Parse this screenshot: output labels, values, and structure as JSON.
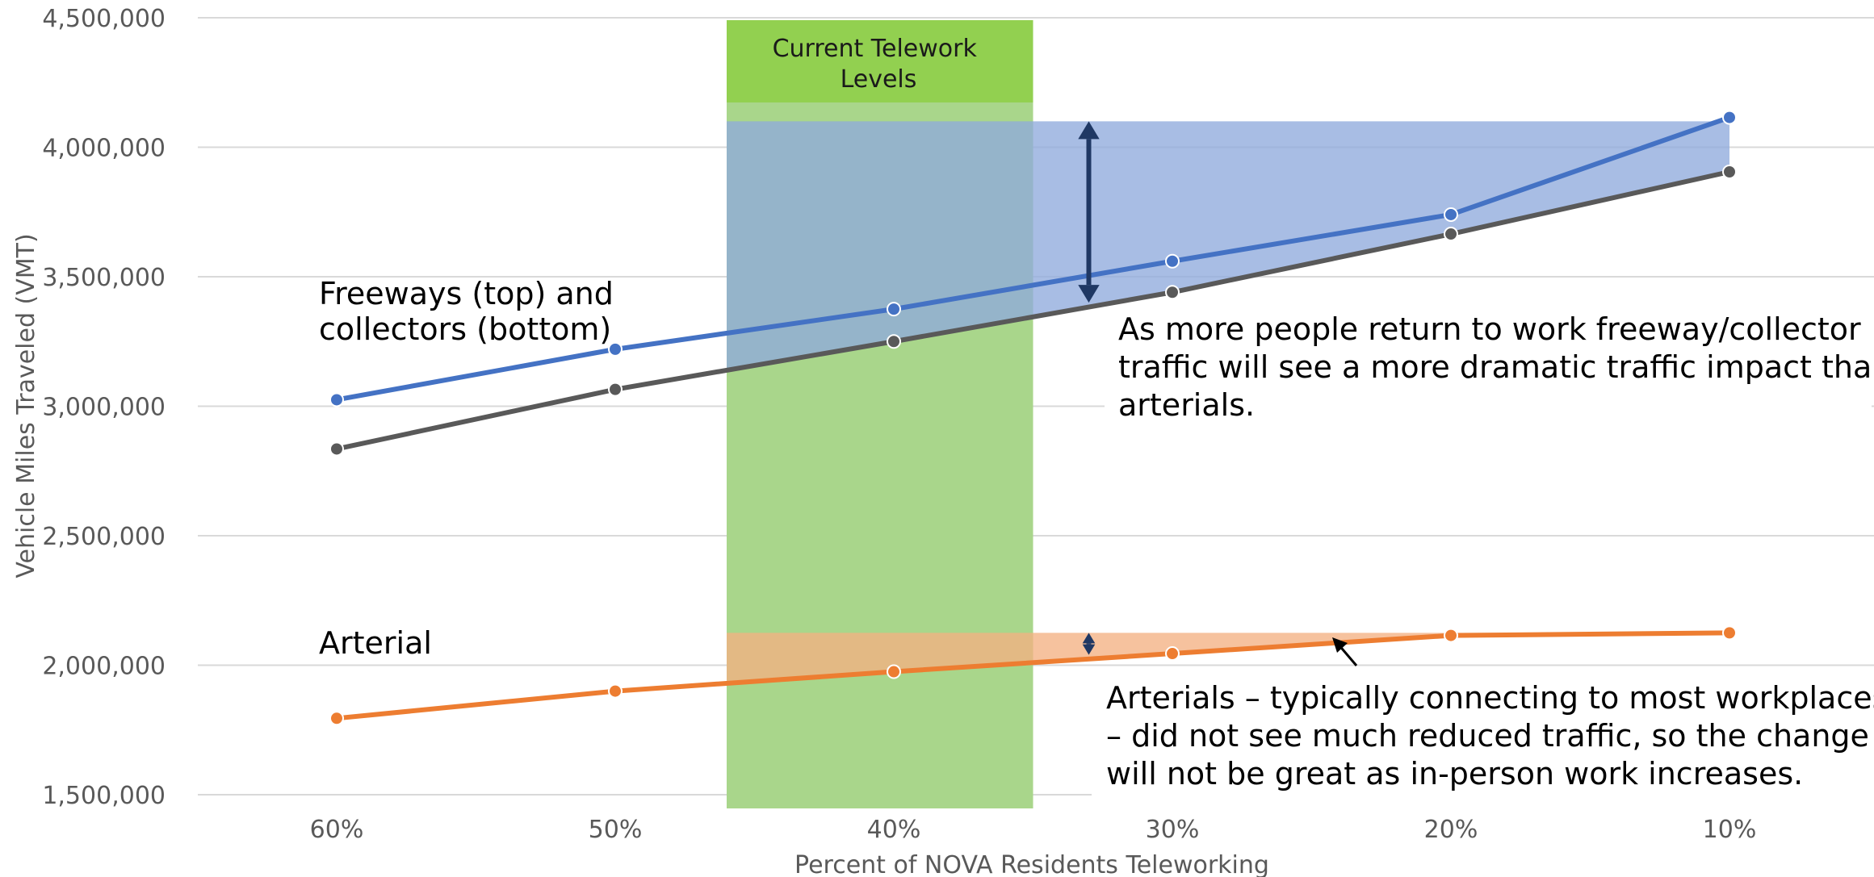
{
  "chart_data": {
    "type": "line",
    "title": "",
    "xlabel": "Percent of NOVA Residents Teleworking",
    "ylabel": "Vehicle Miles Traveled (VMT)",
    "categories": [
      "60%",
      "50%",
      "40%",
      "30%",
      "20%",
      "10%"
    ],
    "ylim": [
      1500000,
      4500000
    ],
    "yticks": [
      1500000,
      2000000,
      2500000,
      3000000,
      3500000,
      4000000,
      4500000
    ],
    "ytick_labels": [
      "1,500,000",
      "2,000,000",
      "2,500,000",
      "3,000,000",
      "3,500,000",
      "4,000,000",
      "4,500,000"
    ],
    "grid": true,
    "legend": "none",
    "series": [
      {
        "key": "freeway",
        "values": [
          3025000,
          3220000,
          3375000,
          3560000,
          3740000,
          4115000
        ]
      },
      {
        "key": "collector",
        "values": [
          2835000,
          3065000,
          3250000,
          3440000,
          3665000,
          3905000
        ]
      },
      {
        "key": "arterial",
        "values": [
          1795000,
          1900000,
          1975000,
          2045000,
          2115000,
          2125000
        ]
      }
    ],
    "colors": {
      "freeway": "#4472c4",
      "collector": "#595959",
      "arterial": "#ed7d31",
      "telework_band": "#a9d68b",
      "telework_band_header": "#92d050",
      "freeway_gap": "#8faadc",
      "arterial_gap": "#f4b183",
      "arrow": "#1f3864"
    },
    "band": {
      "from_category": 1.4,
      "to_category": 2.5,
      "title_line1": "Current Telework",
      "title_line2": "Levels"
    },
    "freeway_gap_region": {
      "top_value": 4100000,
      "from_category": 1.4,
      "to_category": 5
    },
    "arterial_gap_region": {
      "top_value": 2125000,
      "from_category": 1.4,
      "to_category": 5
    },
    "freeway_arrow": {
      "category": 2.7,
      "from_value": 4100000,
      "to_value": 3400000
    },
    "arterial_arrow": {
      "category": 2.7,
      "from_value": 2125000,
      "to_value": 2040000
    },
    "annotations": {
      "freeway_label_line1": "Freeways (top) and",
      "freeway_label_line2": "collectors (bottom)",
      "arterial_label": "Arterial",
      "return_note_line1": "As more people return to work freeway/collector",
      "return_note_line2": "traffic will see a more dramatic traffic impact than",
      "return_note_line3": "arterials.",
      "arterial_note_line1": "Arterials – typically connecting to most workplaces",
      "arterial_note_line2": "– did not see much reduced traffic, so the change",
      "arterial_note_line3": "will not be great as in-person work increases."
    }
  }
}
